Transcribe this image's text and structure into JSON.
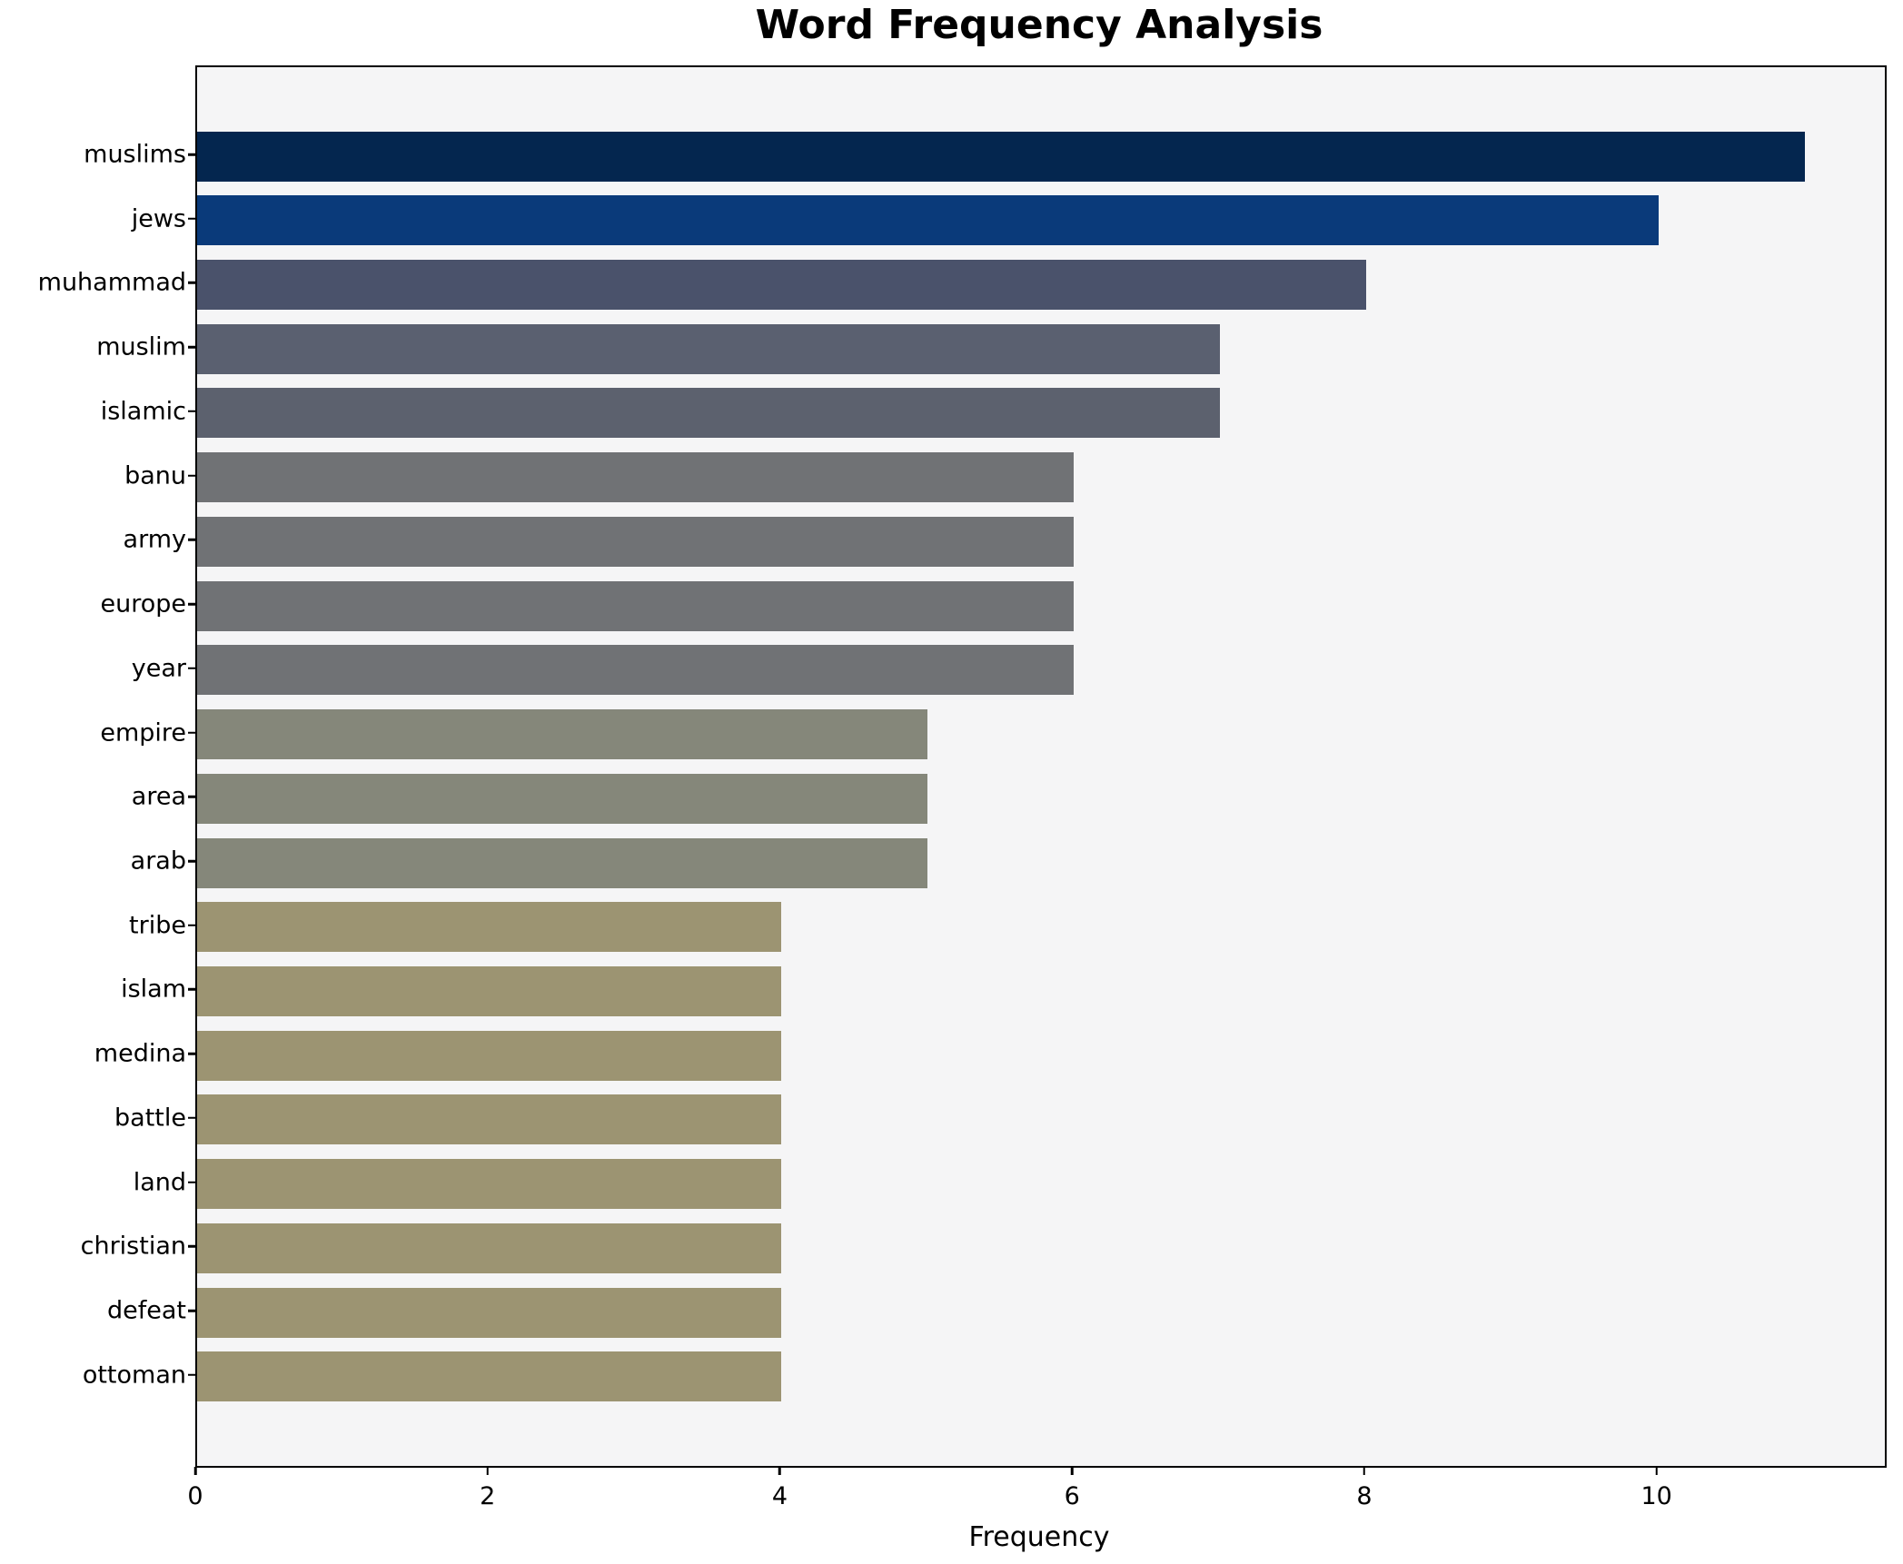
{
  "title": "Word Frequency Analysis",
  "chart_data": {
    "type": "bar",
    "orientation": "horizontal",
    "title": "Word Frequency Analysis",
    "xlabel": "Frequency",
    "ylabel": "",
    "xlim": [
      0,
      11.55
    ],
    "xticks": [
      0,
      2,
      4,
      6,
      8,
      10
    ],
    "grid": false,
    "legend": "none",
    "plot_background": "#f5f5f6",
    "figure_background": "#ffffff",
    "axis_color": "#000000",
    "categories": [
      "muslims",
      "jews",
      "muhammad",
      "muslim",
      "islamic",
      "banu",
      "army",
      "europe",
      "year",
      "empire",
      "area",
      "arab",
      "tribe",
      "islam",
      "medina",
      "battle",
      "land",
      "christian",
      "defeat",
      "ottoman"
    ],
    "values": [
      11,
      10,
      8,
      7,
      7,
      6,
      6,
      6,
      6,
      5,
      5,
      5,
      4,
      4,
      4,
      4,
      4,
      4,
      4,
      4
    ],
    "bar_colors": [
      "#04264f",
      "#0a3a7a",
      "#4a526b",
      "#5a6070",
      "#5c616e",
      "#707275",
      "#707275",
      "#707275",
      "#707275",
      "#85877a",
      "#85877a",
      "#85877a",
      "#9c9472",
      "#9c9472",
      "#9c9472",
      "#9c9472",
      "#9c9472",
      "#9c9472",
      "#9c9472",
      "#9c9472"
    ]
  }
}
